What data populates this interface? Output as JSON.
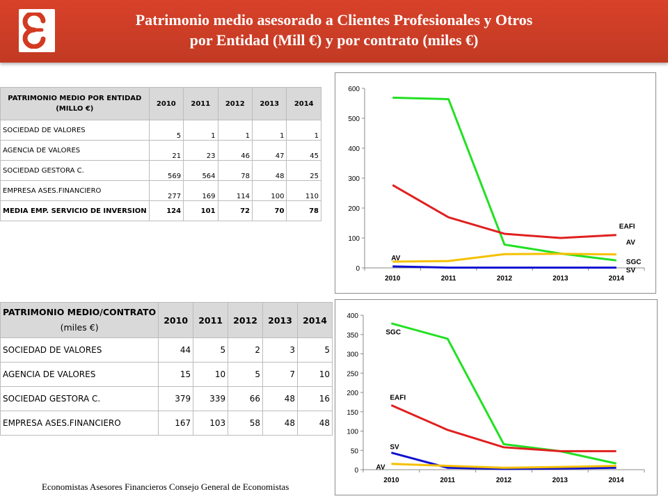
{
  "title": {
    "line1": "Patrimonio medio asesorado a Clientes Profesionales y Otros",
    "line2": "por Entidad (Mill €) y por contrato (miles €)"
  },
  "logo": {
    "symbol": "Ɛ",
    "color": "#d33a22"
  },
  "table1": {
    "header_line1": "PATRIMONIO MEDIO POR ENTIDAD",
    "header_line2": "(MILLO €)",
    "years": [
      "2010",
      "2011",
      "2012",
      "2013",
      "2014"
    ],
    "rows": [
      {
        "label": "SOCIEDAD DE VALORES",
        "values": [
          "5",
          "1",
          "1",
          "1",
          "1"
        ]
      },
      {
        "label": "AGENCIA DE VALORES",
        "values": [
          "21",
          "23",
          "46",
          "47",
          "45"
        ]
      },
      {
        "label": "SOCIEDAD GESTORA C.",
        "values": [
          "569",
          "564",
          "78",
          "48",
          "25"
        ]
      },
      {
        "label": "EMPRESA ASES.FINANCIERO",
        "values": [
          "277",
          "169",
          "114",
          "100",
          "110"
        ]
      },
      {
        "label": "MEDIA EMP. SERVICIO DE INVERSION",
        "values": [
          "124",
          "101",
          "72",
          "70",
          "78"
        ]
      }
    ]
  },
  "table2": {
    "header_line1": "PATRIMONIO MEDIO/CONTRATO",
    "header_line2": "(miles €)",
    "years": [
      "2010",
      "2011",
      "2012",
      "2013",
      "2014"
    ],
    "rows": [
      {
        "label": "SOCIEDAD DE VALORES",
        "values": [
          "44",
          "5",
          "2",
          "3",
          "5"
        ]
      },
      {
        "label": "AGENCIA DE VALORES",
        "values": [
          "15",
          "10",
          "5",
          "7",
          "10"
        ]
      },
      {
        "label": "SOCIEDAD GESTORA C.",
        "values": [
          "379",
          "339",
          "66",
          "48",
          "16"
        ]
      },
      {
        "label": "EMPRESA ASES.FINANCIERO",
        "values": [
          "167",
          "103",
          "58",
          "48",
          "48"
        ]
      }
    ]
  },
  "chart_data": [
    {
      "type": "line",
      "categories": [
        "2010",
        "2011",
        "2012",
        "2013",
        "2014"
      ],
      "ylim": [
        0,
        600
      ],
      "yticks": [
        0,
        100,
        200,
        300,
        400,
        500,
        600
      ],
      "grid": false,
      "series": [
        {
          "name": "SGC",
          "color": "#22e022",
          "values": [
            569,
            564,
            78,
            48,
            25
          ]
        },
        {
          "name": "EAFI",
          "color": "#e02020",
          "values": [
            277,
            169,
            114,
            100,
            110
          ]
        },
        {
          "name": "AV",
          "color": "#f5c000",
          "values": [
            21,
            23,
            46,
            47,
            45
          ]
        },
        {
          "name": "SV",
          "color": "#1010d0",
          "values": [
            5,
            1,
            1,
            1,
            1
          ]
        }
      ],
      "labels": [
        {
          "text": "EAFI",
          "series": "EAFI",
          "anchor_index": 4
        },
        {
          "text": "AV",
          "series": "AV",
          "anchor_index": 4
        },
        {
          "text": "SGC",
          "series": "SGC",
          "anchor_index": 4
        },
        {
          "text": "SV",
          "series": "SV",
          "anchor_index": 4
        },
        {
          "text": "AV",
          "series": "AV",
          "anchor_index": 0
        }
      ]
    },
    {
      "type": "line",
      "categories": [
        "2010",
        "2011",
        "2012",
        "2013",
        "2014"
      ],
      "ylim": [
        0,
        400
      ],
      "yticks": [
        0,
        50,
        100,
        150,
        200,
        250,
        300,
        350,
        400
      ],
      "grid": false,
      "series": [
        {
          "name": "SGC",
          "color": "#22e022",
          "values": [
            379,
            339,
            66,
            48,
            16
          ]
        },
        {
          "name": "EAFI",
          "color": "#e02020",
          "values": [
            167,
            103,
            58,
            48,
            48
          ]
        },
        {
          "name": "SV",
          "color": "#1010d0",
          "values": [
            44,
            5,
            2,
            3,
            5
          ]
        },
        {
          "name": "AV",
          "color": "#f5c000",
          "values": [
            15,
            10,
            5,
            7,
            10
          ]
        }
      ],
      "labels": [
        {
          "text": "SGC",
          "series": "SGC",
          "anchor_index": 0
        },
        {
          "text": "EAFI",
          "series": "EAFI",
          "anchor_index": 0
        },
        {
          "text": "SV",
          "series": "SV",
          "anchor_index": 0
        },
        {
          "text": "AV",
          "series": "AV",
          "anchor_index": 0
        }
      ]
    }
  ],
  "footer": {
    "text": "Economistas Asesores Financieros Consejo General de Economistas"
  }
}
